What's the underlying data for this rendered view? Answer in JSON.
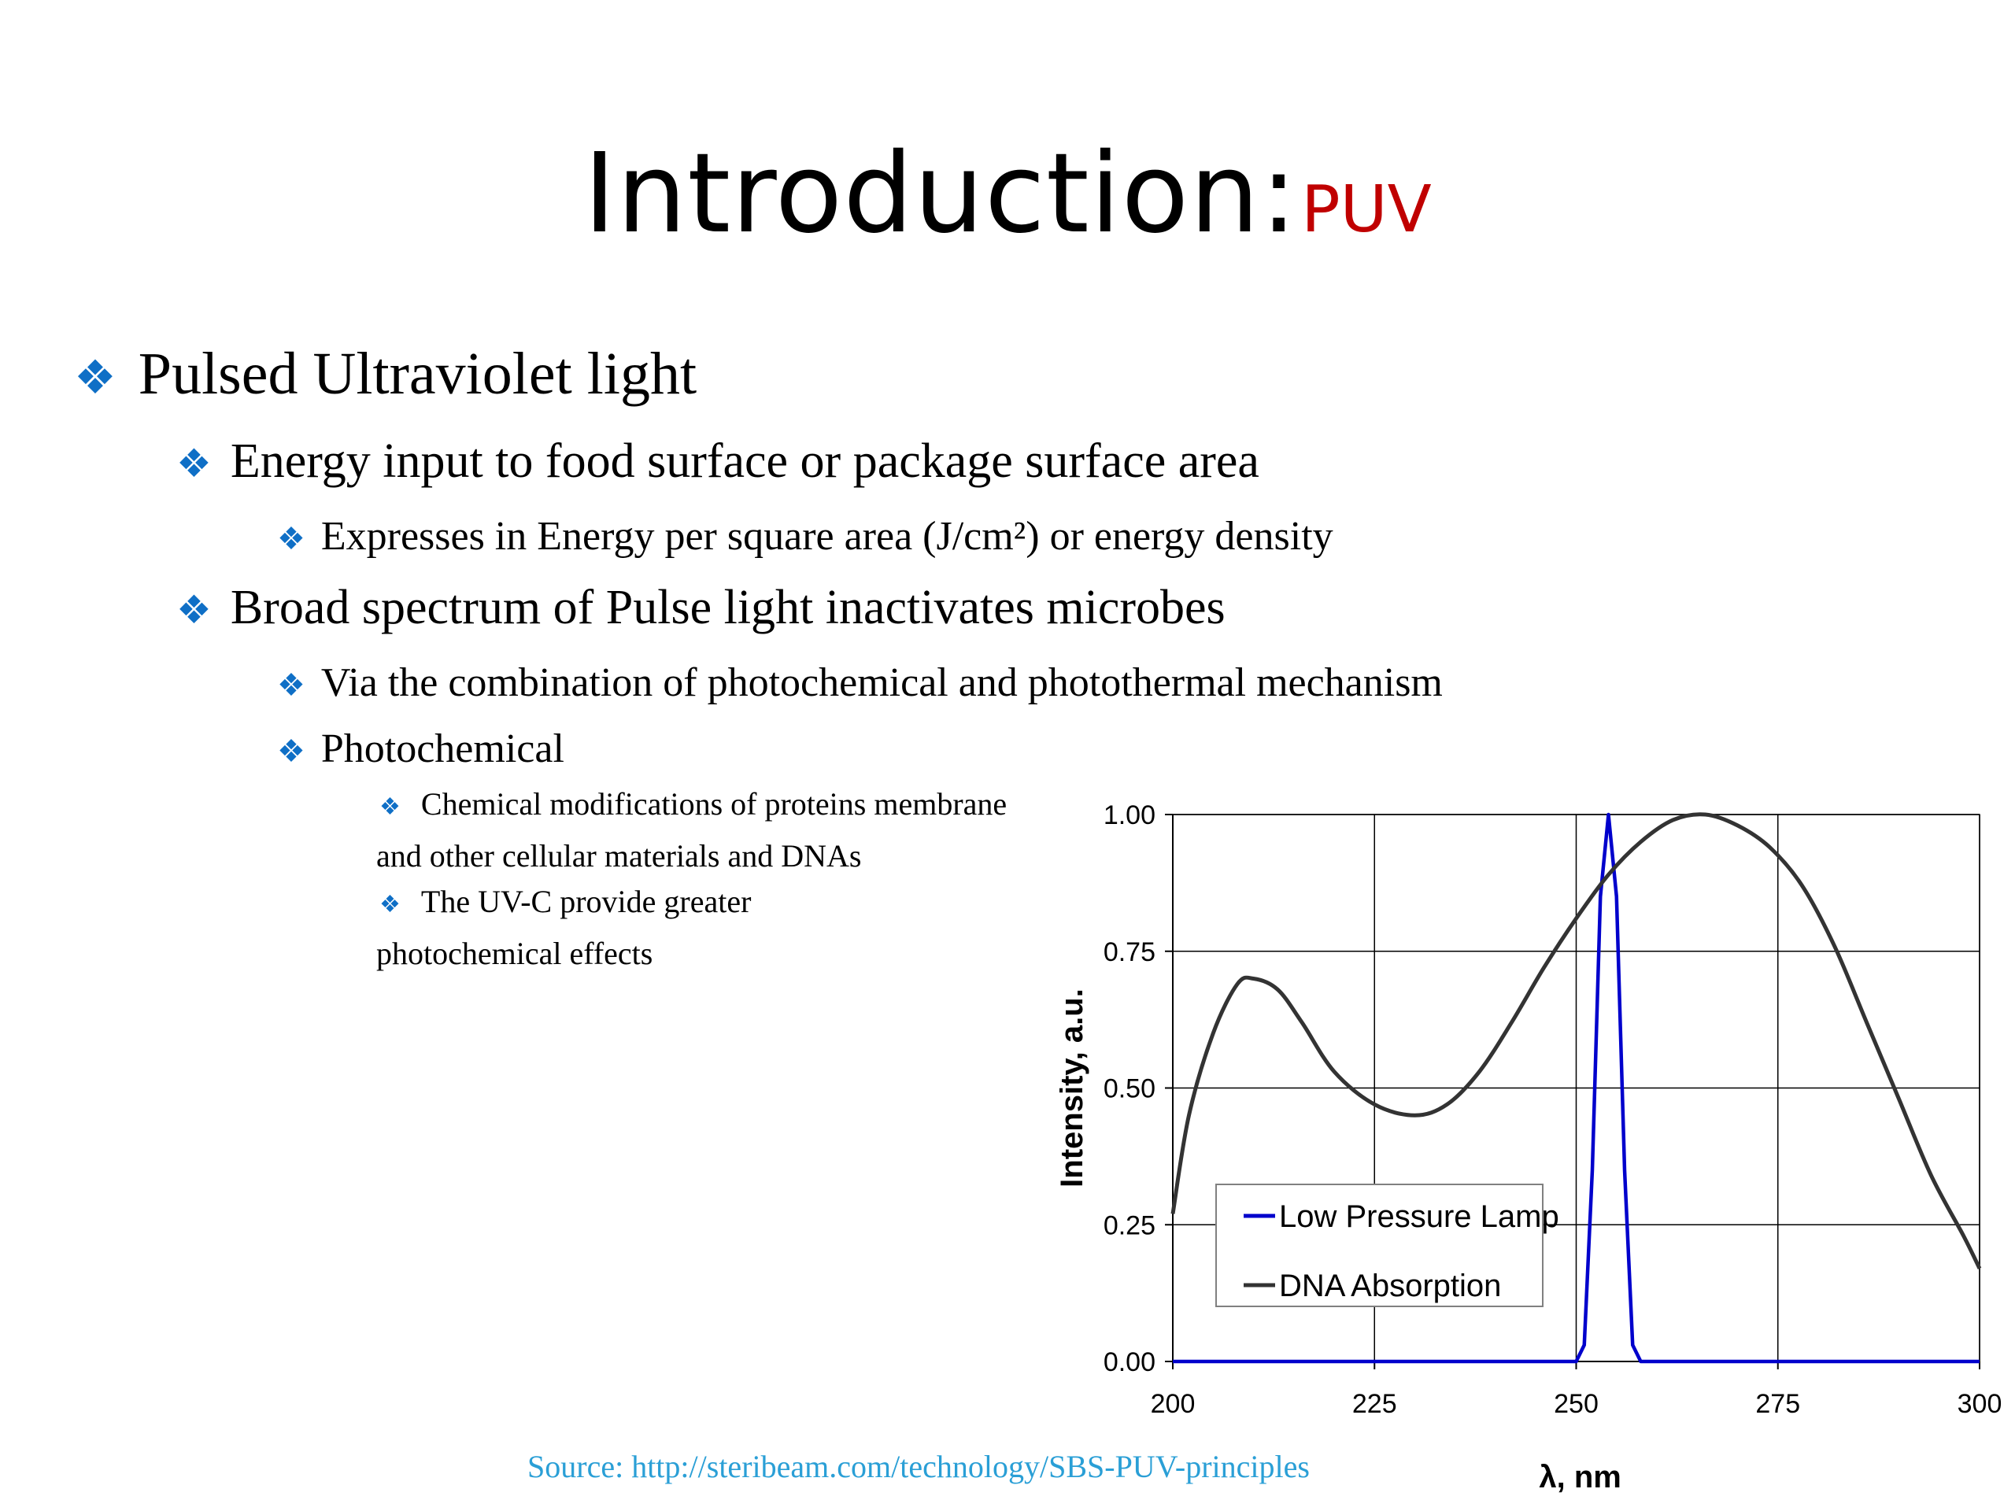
{
  "slide": {
    "title": "Introduction:",
    "title_accent": "PUV",
    "bullets": {
      "b1": "Pulsed Ultraviolet light",
      "b1_1": "Energy input to food surface or package surface area",
      "b1_1_1": "Expresses in Energy per square area (J/cm²) or energy density",
      "b1_2": "Broad spectrum of Pulse light inactivates microbes",
      "b1_2_1": "Via the combination of photochemical and photothermal mechanism",
      "b1_2_2": "Photochemical",
      "b1_2_2_1a": "Chemical modifications of proteins membrane",
      "b1_2_2_1b": "and other cellular materials and DNAs",
      "b1_2_2_2a": "The UV-C provide greater",
      "b1_2_2_2b": "photochemical effects"
    },
    "source": "Source: http://steribeam.com/technology/SBS-PUV-principles",
    "bullet_color": "#0f6fc6",
    "accent_color": "#c00000",
    "source_color": "#2a9fd6"
  },
  "chart_data": {
    "type": "line",
    "title": "",
    "xlabel": "λ, nm",
    "ylabel": "Intensity, a.u.",
    "xlim": [
      200,
      300
    ],
    "ylim": [
      0,
      1
    ],
    "xticks": [
      "200",
      "225",
      "250",
      "275",
      "300"
    ],
    "yticks": [
      "0.00",
      "0.25",
      "0.50",
      "0.75",
      "1.00"
    ],
    "grid": true,
    "legend_position": "lower-left",
    "series": [
      {
        "name": "Low Pressure Lamp",
        "color": "#0000cc",
        "x": [
          200,
          250,
          251,
          252,
          253,
          254,
          255,
          256,
          257,
          258,
          300
        ],
        "y": [
          0,
          0,
          0.03,
          0.35,
          0.85,
          1.0,
          0.85,
          0.35,
          0.03,
          0,
          0
        ]
      },
      {
        "name": "DNA Absorption",
        "color": "#333333",
        "x": [
          200,
          202,
          205,
          208,
          210,
          213,
          216,
          220,
          225,
          230,
          234,
          238,
          242,
          246,
          250,
          254,
          258,
          262,
          266,
          270,
          274,
          278,
          282,
          286,
          290,
          294,
          298,
          300
        ],
        "y": [
          0.27,
          0.45,
          0.6,
          0.69,
          0.7,
          0.68,
          0.62,
          0.53,
          0.47,
          0.45,
          0.47,
          0.53,
          0.62,
          0.72,
          0.81,
          0.89,
          0.95,
          0.99,
          1.0,
          0.98,
          0.94,
          0.87,
          0.76,
          0.62,
          0.48,
          0.34,
          0.23,
          0.17
        ]
      }
    ]
  }
}
